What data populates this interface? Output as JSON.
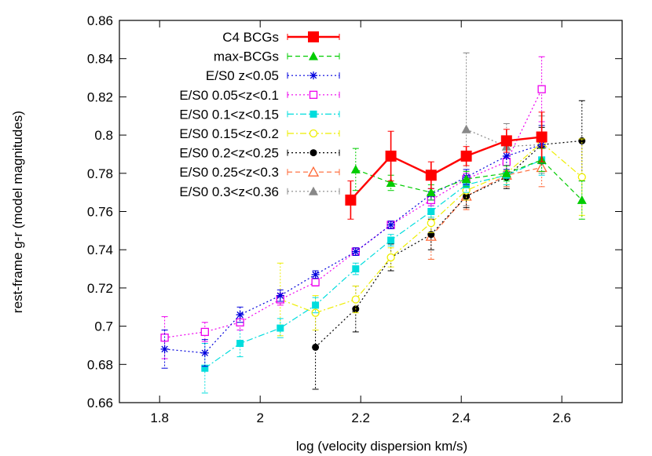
{
  "chart_data": {
    "type": "line",
    "title": "",
    "xlabel": "log (velocity dispersion km/s)",
    "ylabel": "rest-frame g-r (model magnitudes)",
    "xlim": [
      1.72,
      2.72
    ],
    "ylim": [
      0.66,
      0.86
    ],
    "x_ticks": [
      {
        "value": 1.8,
        "label": "1.8"
      },
      {
        "value": 2.0,
        "label": "2"
      },
      {
        "value": 2.2,
        "label": "2.2"
      },
      {
        "value": 2.4,
        "label": "2.4"
      },
      {
        "value": 2.6,
        "label": "2.6"
      }
    ],
    "y_ticks": [
      {
        "value": 0.66,
        "label": "0.66"
      },
      {
        "value": 0.68,
        "label": "0.68"
      },
      {
        "value": 0.7,
        "label": "0.7"
      },
      {
        "value": 0.72,
        "label": "0.72"
      },
      {
        "value": 0.74,
        "label": "0.74"
      },
      {
        "value": 0.76,
        "label": "0.76"
      },
      {
        "value": 0.78,
        "label": "0.78"
      },
      {
        "value": 0.8,
        "label": "0.8"
      },
      {
        "value": 0.82,
        "label": "0.82"
      },
      {
        "value": 0.84,
        "label": "0.84"
      },
      {
        "value": 0.86,
        "label": "0.86"
      }
    ],
    "grid": false,
    "legend_position": "top-left",
    "series": [
      {
        "name": "C4 BCGs",
        "color": "#ff0000",
        "marker": "filled-square",
        "dash": "solid",
        "x": [
          2.18,
          2.26,
          2.34,
          2.41,
          2.49,
          2.56
        ],
        "y": [
          0.766,
          0.789,
          0.779,
          0.789,
          0.797,
          0.799
        ],
        "err": [
          0.01,
          0.013,
          0.007,
          0.005,
          0.006,
          0.013
        ]
      },
      {
        "name": "max-BCGs",
        "color": "#00cc00",
        "marker": "filled-triangle",
        "dash": "dashed",
        "x": [
          2.19,
          2.26,
          2.34,
          2.41,
          2.49,
          2.56,
          2.64
        ],
        "y": [
          0.782,
          0.775,
          0.77,
          0.777,
          0.78,
          0.787,
          0.766
        ],
        "err": [
          0.011,
          0.004,
          0.004,
          0.004,
          0.004,
          0.006,
          0.01
        ]
      },
      {
        "name": "E/S0 z<0.05",
        "color": "#0000dd",
        "marker": "asterisk",
        "dash": "dotted",
        "x": [
          1.81,
          1.89,
          1.96,
          2.04,
          2.11,
          2.19,
          2.26,
          2.34,
          2.41,
          2.49,
          2.56
        ],
        "y": [
          0.688,
          0.686,
          0.706,
          0.716,
          0.727,
          0.739,
          0.753,
          0.769,
          0.778,
          0.789,
          0.795
        ],
        "err": [
          0.01,
          0.007,
          0.004,
          0.003,
          0.002,
          0.002,
          0.002,
          0.003,
          0.004,
          0.007,
          0.01
        ]
      },
      {
        "name": "E/S0 0.05<z<0.1",
        "color": "#ee00ee",
        "marker": "open-square",
        "dash": "dotted",
        "x": [
          1.81,
          1.89,
          1.96,
          2.04,
          2.11,
          2.19,
          2.26,
          2.34,
          2.41,
          2.49,
          2.56
        ],
        "y": [
          0.694,
          0.697,
          0.702,
          0.714,
          0.723,
          0.739,
          0.753,
          0.766,
          0.777,
          0.786,
          0.824
        ],
        "err": [
          0.011,
          0.005,
          0.004,
          0.003,
          0.002,
          0.002,
          0.002,
          0.003,
          0.003,
          0.005,
          0.017
        ]
      },
      {
        "name": "E/S0 0.1<z<0.15",
        "color": "#00dddd",
        "marker": "filled-square-small",
        "dash": "dashdot",
        "x": [
          1.89,
          1.96,
          2.04,
          2.11,
          2.19,
          2.26,
          2.34,
          2.41,
          2.49,
          2.56
        ],
        "y": [
          0.678,
          0.691,
          0.699,
          0.711,
          0.73,
          0.745,
          0.76,
          0.774,
          0.779,
          0.787
        ],
        "err": [
          0.013,
          0.007,
          0.005,
          0.004,
          0.003,
          0.003,
          0.003,
          0.004,
          0.005,
          0.008
        ]
      },
      {
        "name": "E/S0 0.15<z<0.2",
        "color": "#eeee00",
        "marker": "open-circle",
        "dash": "dashdot",
        "x": [
          2.04,
          2.11,
          2.19,
          2.26,
          2.34,
          2.41,
          2.49,
          2.56,
          2.64
        ],
        "y": [
          0.714,
          0.707,
          0.714,
          0.736,
          0.754,
          0.771,
          0.78,
          0.796,
          0.778
        ],
        "err": [
          0.019,
          0.009,
          0.007,
          0.005,
          0.005,
          0.005,
          0.006,
          0.009,
          0.02
        ]
      },
      {
        "name": "E/S0 0.2<z<0.25",
        "color": "#000000",
        "marker": "filled-circle",
        "dash": "dotted",
        "x": [
          2.11,
          2.19,
          2.26,
          2.34,
          2.41,
          2.49,
          2.56,
          2.64
        ],
        "y": [
          0.689,
          0.709,
          0.736,
          0.748,
          0.768,
          0.778,
          0.795,
          0.797
        ],
        "err": [
          0.022,
          0.012,
          0.007,
          0.008,
          0.006,
          0.006,
          0.009,
          0.021
        ]
      },
      {
        "name": "E/S0 0.25<z<0.3",
        "color": "#ff6633",
        "marker": "open-triangle",
        "dash": "dashed",
        "x": [
          2.34,
          2.41,
          2.49,
          2.56
        ],
        "y": [
          0.747,
          0.768,
          0.779,
          0.783
        ],
        "err": [
          0.012,
          0.007,
          0.006,
          0.01
        ]
      },
      {
        "name": "E/S0 0.3<z<0.36",
        "color": "#888888",
        "marker": "filled-triangle",
        "dash": "dotted",
        "x": [
          2.41,
          2.49,
          2.56
        ],
        "y": [
          0.803,
          0.794,
          0.795
        ],
        "err": [
          0.04,
          0.012,
          0.015
        ]
      }
    ]
  }
}
